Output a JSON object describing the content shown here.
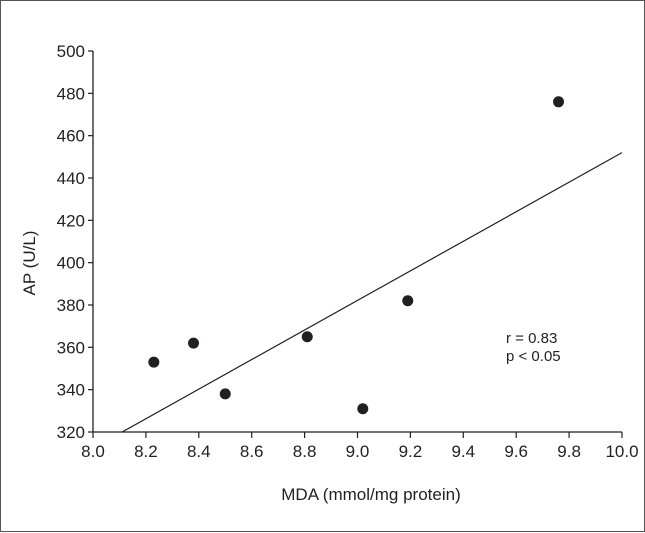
{
  "chart_data": {
    "type": "scatter",
    "title": "",
    "xlabel": "MDA (mmol/mg protein)",
    "ylabel": "AP (U/L)",
    "xlim": [
      8.0,
      10.0
    ],
    "ylim": [
      320,
      500
    ],
    "xticks": [
      "8.0",
      "8.2",
      "8.4",
      "8.6",
      "8.8",
      "9.0",
      "9.2",
      "9.4",
      "9.6",
      "9.8",
      "10.0"
    ],
    "yticks": [
      "320",
      "340",
      "360",
      "380",
      "400",
      "420",
      "440",
      "460",
      "480",
      "500"
    ],
    "points": [
      {
        "x": 8.23,
        "y": 353
      },
      {
        "x": 8.38,
        "y": 362
      },
      {
        "x": 8.5,
        "y": 338
      },
      {
        "x": 8.81,
        "y": 365
      },
      {
        "x": 9.02,
        "y": 331
      },
      {
        "x": 9.19,
        "y": 382
      },
      {
        "x": 9.76,
        "y": 476
      }
    ],
    "regression_line": {
      "x": [
        8.11,
        10.0
      ],
      "y": [
        320,
        452
      ]
    },
    "grid": false,
    "annotations": [
      "r = 0.83",
      "p < 0.05"
    ],
    "colors": {
      "points": "#231f20",
      "line": "#231f20",
      "axes": "#231f20"
    }
  }
}
